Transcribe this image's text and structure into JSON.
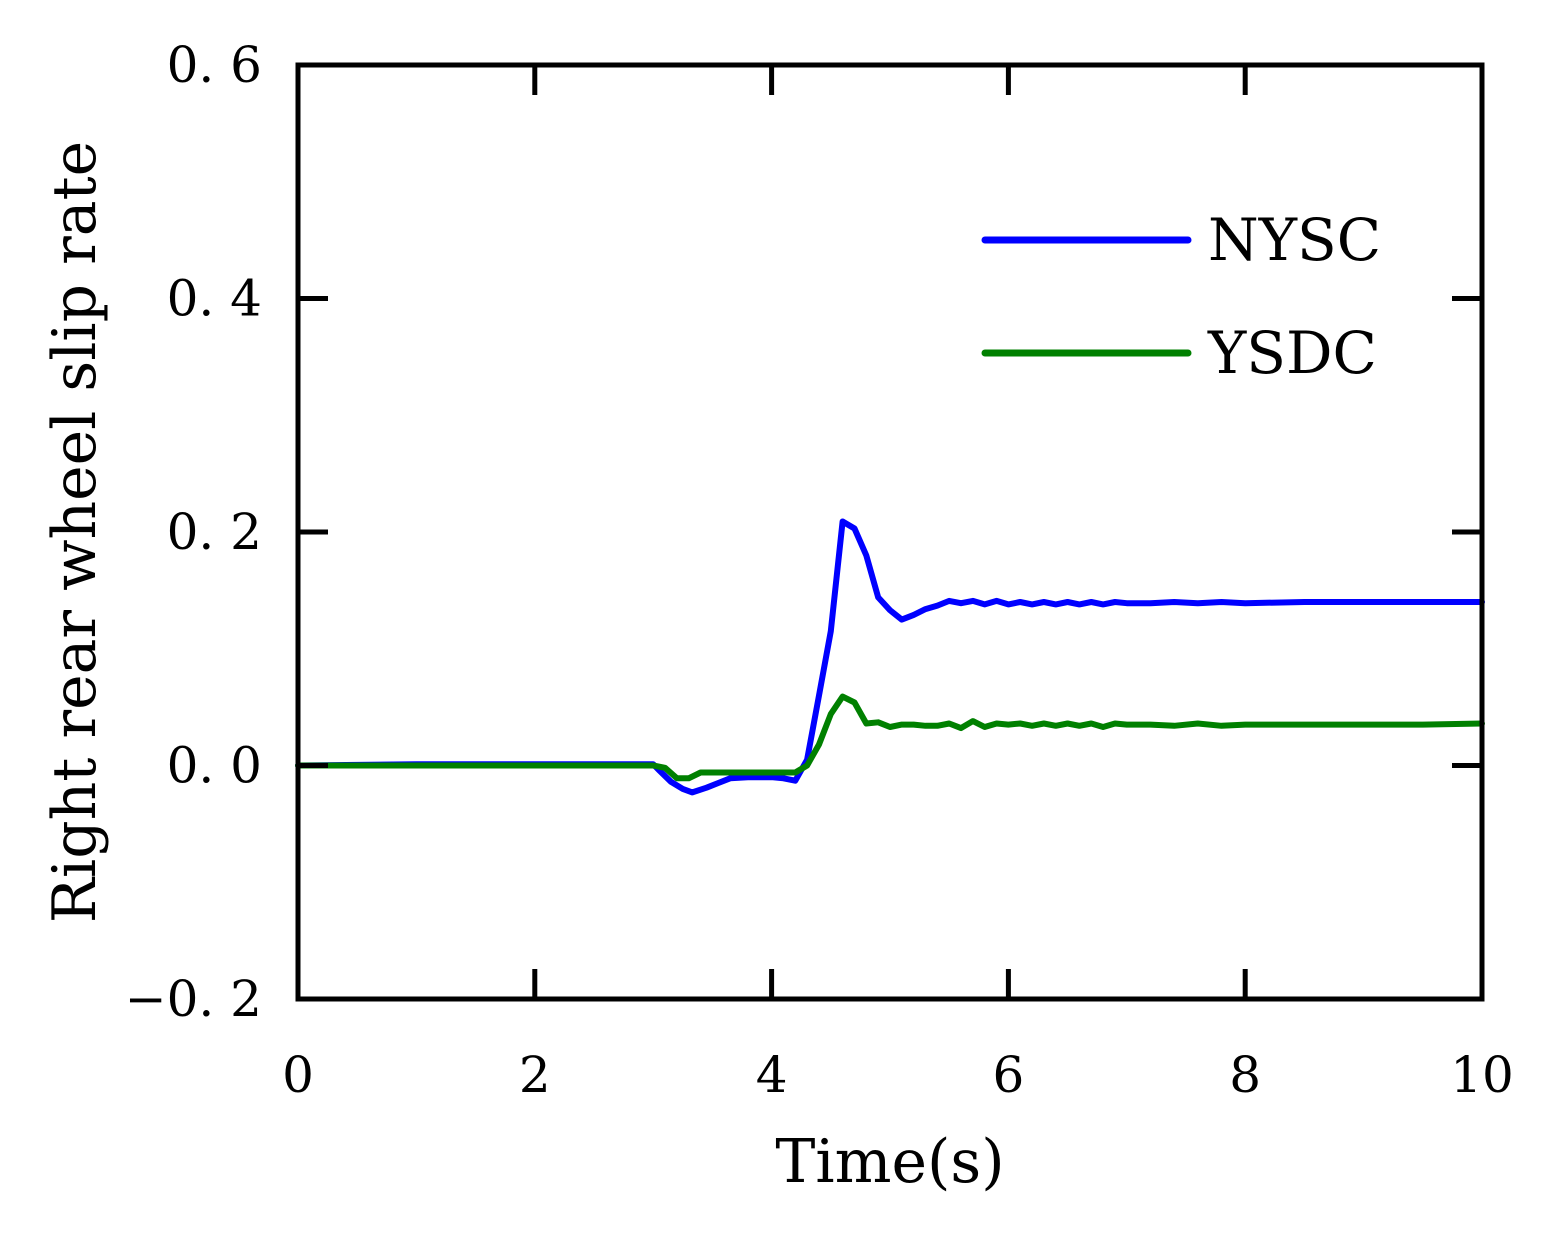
{
  "chart_data": {
    "type": "line",
    "title": "",
    "xlabel": "Time(s)",
    "ylabel": "Right rear wheel slip rate",
    "xlim": [
      0,
      10
    ],
    "ylim": [
      -0.2,
      0.6
    ],
    "xticks": [
      0,
      2,
      4,
      6,
      8,
      10
    ],
    "xtick_labels": [
      "0",
      "2",
      "4",
      "6",
      "8",
      "10"
    ],
    "yticks": [
      -0.2,
      0.0,
      0.2,
      0.4,
      0.6
    ],
    "ytick_labels": [
      "−0. 2",
      "0. 0",
      "0. 2",
      "0. 4",
      "0. 6"
    ],
    "grid": false,
    "legend_position": "top-right",
    "series": [
      {
        "name": "NYSC",
        "color": "#0000ff",
        "x": [
          0,
          1,
          2,
          3,
          3.05,
          3.15,
          3.25,
          3.33,
          3.45,
          3.55,
          3.65,
          3.8,
          4.0,
          4.1,
          4.2,
          4.3,
          4.4,
          4.5,
          4.6,
          4.7,
          4.8,
          4.9,
          5.0,
          5.1,
          5.2,
          5.3,
          5.4,
          5.5,
          5.6,
          5.7,
          5.8,
          5.9,
          6.0,
          6.1,
          6.2,
          6.3,
          6.4,
          6.5,
          6.6,
          6.7,
          6.8,
          6.9,
          7.0,
          7.2,
          7.4,
          7.6,
          7.8,
          8.0,
          8.5,
          9.0,
          9.5,
          10.0
        ],
        "y": [
          0.0,
          0.001,
          0.001,
          0.001,
          -0.004,
          -0.014,
          -0.02,
          -0.023,
          -0.019,
          -0.015,
          -0.011,
          -0.01,
          -0.01,
          -0.011,
          -0.013,
          0.005,
          0.06,
          0.115,
          0.209,
          0.203,
          0.18,
          0.144,
          0.133,
          0.125,
          0.129,
          0.134,
          0.137,
          0.141,
          0.139,
          0.141,
          0.138,
          0.141,
          0.138,
          0.14,
          0.138,
          0.14,
          0.138,
          0.14,
          0.138,
          0.14,
          0.138,
          0.14,
          0.139,
          0.139,
          0.14,
          0.139,
          0.14,
          0.139,
          0.14,
          0.14,
          0.14,
          0.14
        ]
      },
      {
        "name": "YSDC",
        "color": "#008000",
        "x": [
          0,
          1,
          2,
          3,
          3.1,
          3.2,
          3.3,
          3.4,
          3.6,
          3.8,
          4.0,
          4.2,
          4.3,
          4.4,
          4.5,
          4.6,
          4.7,
          4.8,
          4.9,
          5.0,
          5.1,
          5.2,
          5.3,
          5.4,
          5.5,
          5.6,
          5.7,
          5.8,
          5.9,
          6.0,
          6.1,
          6.2,
          6.3,
          6.4,
          6.5,
          6.6,
          6.7,
          6.8,
          6.9,
          7.0,
          7.2,
          7.4,
          7.6,
          7.8,
          8.0,
          8.5,
          9.0,
          9.5,
          10.0
        ],
        "y": [
          0.0,
          0.0,
          0.0,
          0.0,
          -0.002,
          -0.011,
          -0.011,
          -0.006,
          -0.006,
          -0.006,
          -0.006,
          -0.006,
          0.0,
          0.018,
          0.044,
          0.059,
          0.054,
          0.036,
          0.037,
          0.033,
          0.035,
          0.035,
          0.034,
          0.034,
          0.036,
          0.032,
          0.038,
          0.033,
          0.036,
          0.035,
          0.036,
          0.034,
          0.036,
          0.034,
          0.036,
          0.034,
          0.036,
          0.033,
          0.036,
          0.035,
          0.035,
          0.034,
          0.036,
          0.034,
          0.035,
          0.035,
          0.035,
          0.035,
          0.036
        ]
      }
    ]
  }
}
